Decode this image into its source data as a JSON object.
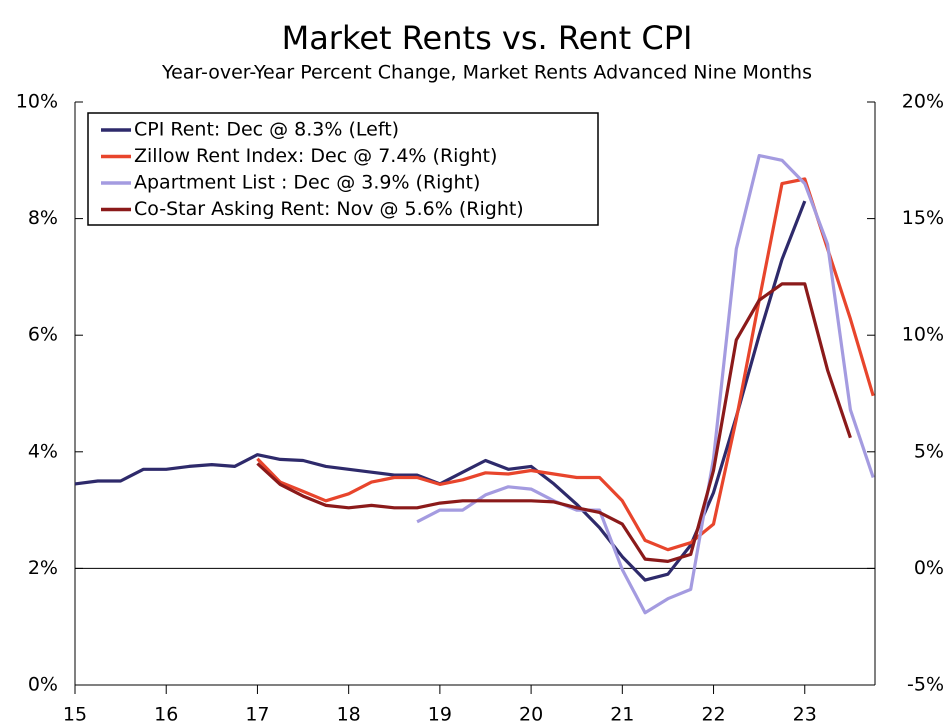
{
  "chart_data": {
    "type": "line",
    "title": "Market Rents vs. Rent CPI",
    "subtitle": "Year-over-Year Percent Change, Market Rents Advanced Nine Months",
    "x": [
      15,
      15.25,
      15.5,
      15.75,
      16,
      16.25,
      16.5,
      16.75,
      17,
      17.25,
      17.5,
      17.75,
      18,
      18.25,
      18.5,
      18.75,
      19,
      19.25,
      19.5,
      19.75,
      20,
      20.25,
      20.5,
      20.75,
      21,
      21.25,
      21.5,
      21.75,
      22,
      22.25,
      22.5,
      22.75,
      23,
      23.25,
      23.5,
      23.75
    ],
    "xlim": [
      15,
      23.77
    ],
    "xticks": [
      15,
      16,
      17,
      18,
      19,
      20,
      21,
      22,
      23
    ],
    "ylim": [
      0,
      10
    ],
    "yticks": [
      {
        "value": 0,
        "label": "0%"
      },
      {
        "value": 2,
        "label": "2%"
      },
      {
        "value": 4,
        "label": "4%"
      },
      {
        "value": 6,
        "label": "6%"
      },
      {
        "value": 8,
        "label": "8%"
      },
      {
        "value": 10,
        "label": "10%"
      }
    ],
    "y2lim": [
      -5,
      20
    ],
    "y2ticks": [
      {
        "value": -5,
        "label": "-5%"
      },
      {
        "value": 0,
        "label": "0%"
      },
      {
        "value": 5,
        "label": "5%"
      },
      {
        "value": 10,
        "label": "10%"
      },
      {
        "value": 15,
        "label": "15%"
      },
      {
        "value": 20,
        "label": "20%"
      }
    ],
    "legend": "top-left",
    "series": [
      {
        "name": "CPI Rent: Dec @ 8.3% (Left)",
        "color": "#2e2a6b",
        "values": [
          3.45,
          3.5,
          3.5,
          3.7,
          3.7,
          3.75,
          3.78,
          3.75,
          3.95,
          3.87,
          3.85,
          3.75,
          3.7,
          3.65,
          3.6,
          3.6,
          3.45,
          3.65,
          3.85,
          3.7,
          3.75,
          3.45,
          3.1,
          2.7,
          2.2,
          1.8,
          1.9,
          2.4,
          3.3,
          4.6,
          6.0,
          7.3,
          8.3,
          null,
          null,
          null
        ]
      },
      {
        "name": "Zillow Rent Index: Dec @ 7.4% (Right)",
        "color": "#e8452c",
        "axis": "y2",
        "values": [
          null,
          null,
          null,
          null,
          null,
          null,
          null,
          null,
          4.7,
          3.7,
          3.3,
          2.9,
          3.2,
          3.7,
          3.9,
          3.9,
          3.6,
          3.8,
          4.1,
          4.05,
          4.2,
          4.05,
          3.9,
          3.9,
          2.9,
          1.2,
          0.8,
          1.1,
          1.9,
          6.4,
          11.5,
          16.5,
          16.7,
          13.7,
          10.7,
          7.4
        ]
      },
      {
        "name": "Apartment List : Dec @ 3.9% (Right)",
        "color": "#a49be0",
        "axis": "y2",
        "values": [
          null,
          null,
          null,
          null,
          null,
          null,
          null,
          null,
          null,
          null,
          null,
          null,
          null,
          null,
          null,
          2.0,
          2.5,
          2.5,
          3.15,
          3.5,
          3.4,
          2.9,
          2.5,
          2.5,
          -0.05,
          -1.9,
          -1.3,
          -0.9,
          4.7,
          13.7,
          17.7,
          17.5,
          16.5,
          13.9,
          6.8,
          3.9
        ]
      },
      {
        "name": "Co-Star Asking Rent: Nov @ 5.6% (Right)",
        "color": "#8b1a1a",
        "axis": "y2",
        "values": [
          null,
          null,
          null,
          null,
          null,
          null,
          null,
          null,
          4.5,
          3.6,
          3.1,
          2.7,
          2.6,
          2.7,
          2.6,
          2.6,
          2.8,
          2.9,
          2.9,
          2.9,
          2.9,
          2.85,
          2.6,
          2.4,
          1.9,
          0.4,
          0.3,
          0.6,
          4.2,
          9.8,
          11.5,
          12.2,
          12.2,
          8.5,
          5.6,
          null
        ]
      }
    ]
  }
}
